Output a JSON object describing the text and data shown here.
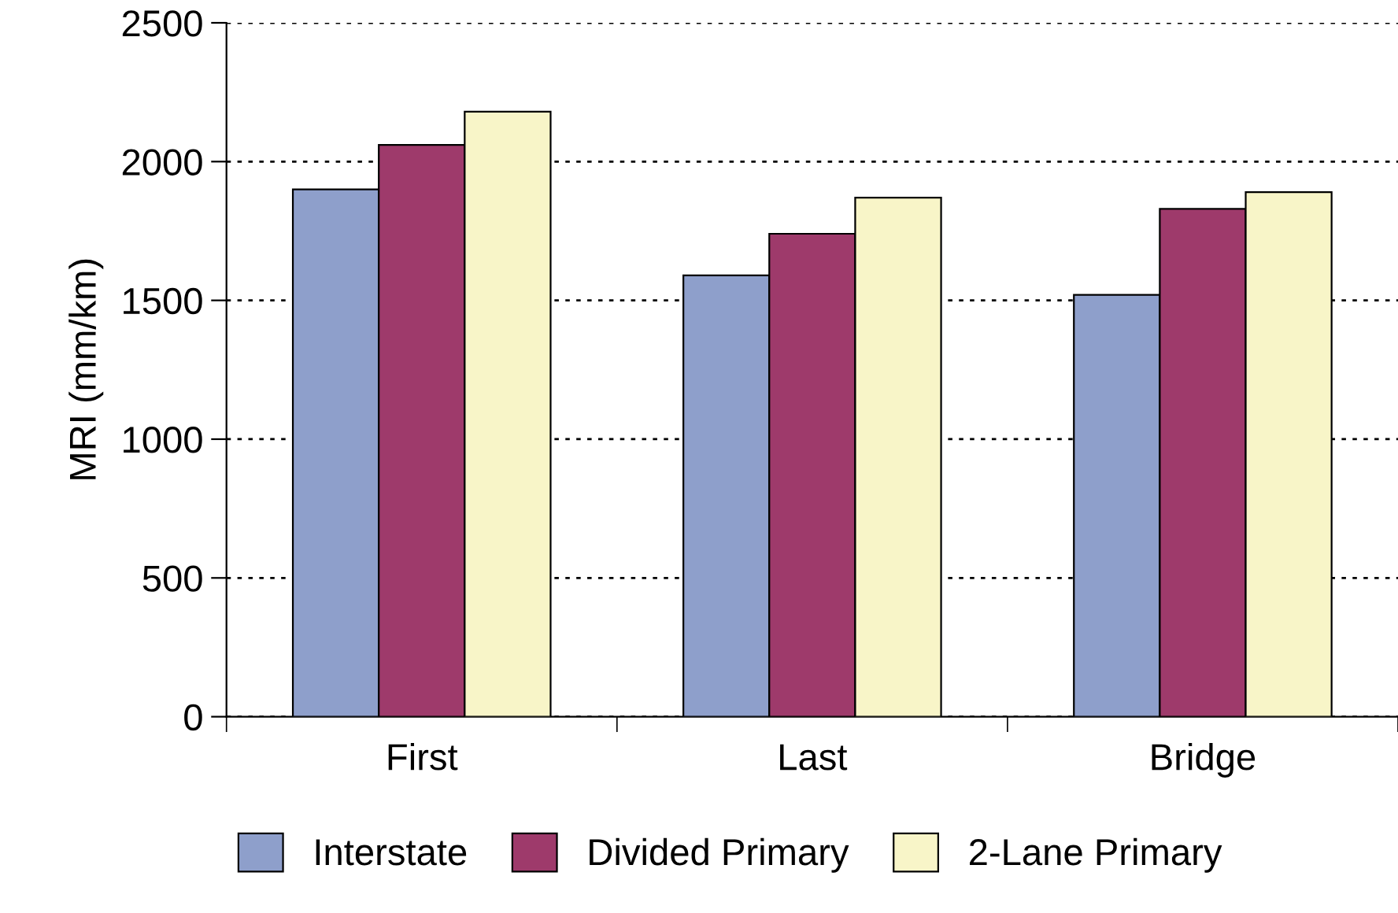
{
  "chart_data": {
    "type": "bar",
    "ylabel": "MRI (mm/km)",
    "categories": [
      "First",
      "Last",
      "Bridge"
    ],
    "series": [
      {
        "name": "Interstate",
        "color": "#8e9fcb",
        "values": [
          1900,
          1590,
          1520
        ]
      },
      {
        "name": "Divided Primary",
        "color": "#9e3a6b",
        "values": [
          2060,
          1740,
          1830
        ]
      },
      {
        "name": "2-Lane Primary",
        "color": "#f8f5c8",
        "values": [
          2180,
          1870,
          1890
        ]
      }
    ],
    "ylim": [
      0,
      2500
    ],
    "yticks": [
      0,
      500,
      1000,
      1500,
      2000,
      2500
    ],
    "grid": "y",
    "legend": "bottom"
  }
}
